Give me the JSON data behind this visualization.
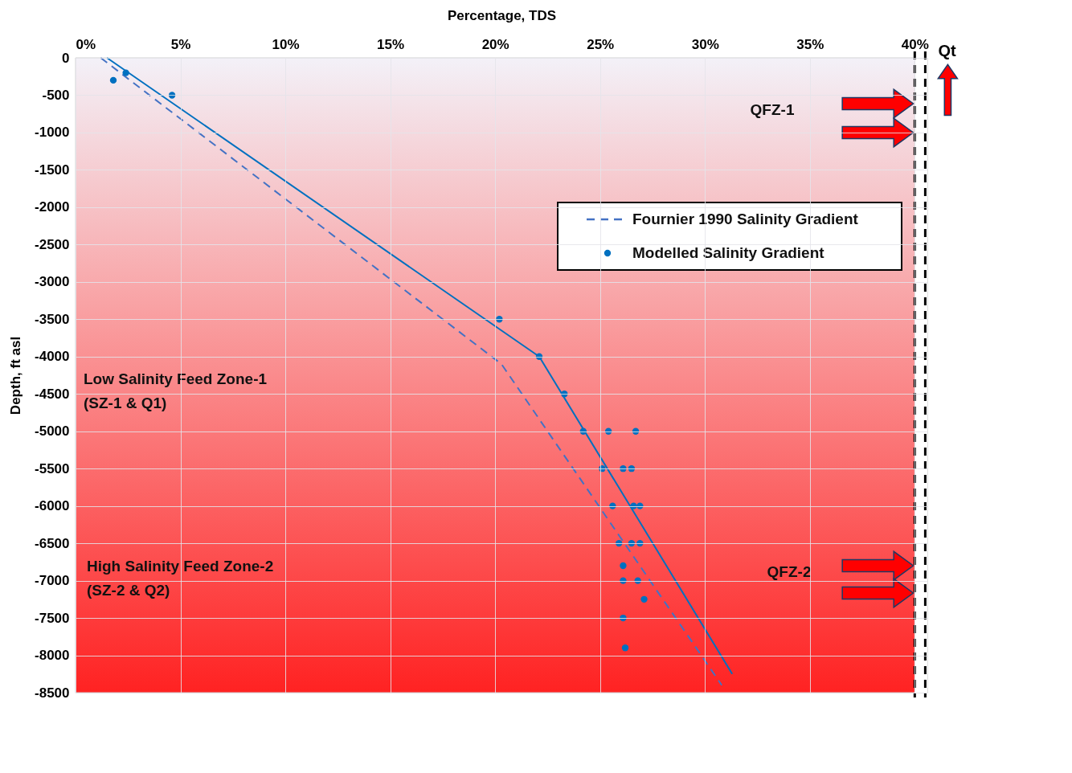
{
  "chart_data": {
    "type": "line",
    "xlabel": "Percentage, TDS",
    "ylabel": "Depth, ft asl",
    "xlim": [
      0,
      40.6
    ],
    "ylim": [
      -8500,
      0
    ],
    "xticks": [
      {
        "value": 0,
        "label": "0%"
      },
      {
        "value": 5,
        "label": "5%"
      },
      {
        "value": 10,
        "label": "10%"
      },
      {
        "value": 15,
        "label": "15%"
      },
      {
        "value": 20,
        "label": "20%"
      },
      {
        "value": 25,
        "label": "25%"
      },
      {
        "value": 30,
        "label": "30%"
      },
      {
        "value": 35,
        "label": "35%"
      },
      {
        "value": 40,
        "label": "40%"
      }
    ],
    "yticks": [
      0,
      -500,
      -1000,
      -1500,
      -2000,
      -2500,
      -3000,
      -3500,
      -4000,
      -4500,
      -5000,
      -5500,
      -6000,
      -6500,
      -7000,
      -7500,
      -8000,
      -8500
    ],
    "grid": true,
    "legend": "top right",
    "series": [
      {
        "line_style": "solid",
        "marker": "none",
        "color": "#0070c0",
        "x": [
          1.5,
          22.1,
          31.3
        ],
        "values": [
          0,
          -4000,
          -8250
        ]
      },
      {
        "name": "Fournier 1990 Salinity Gradient",
        "type": "line",
        "line_style": "dashed",
        "marker": "none",
        "color": "#4472c4",
        "x": [
          1.2,
          20.3,
          30.8
        ],
        "values": [
          0,
          -4100,
          -8400
        ]
      },
      {
        "name": "Modelled Salinity Gradient",
        "type": "scatter",
        "marker": "circle",
        "color": "#0070c0",
        "x": [
          1.8,
          2.4,
          4.6,
          20.2,
          22.1,
          23.3,
          24.2,
          25.4,
          26.7,
          25.1,
          26.1,
          26.5,
          25.6,
          26.6,
          26.9,
          25.9,
          26.5,
          26.9,
          26.1,
          26.1,
          26.8,
          27.1,
          26.1,
          26.2
        ],
        "values": [
          -300,
          -200,
          -500,
          -3500,
          -4000,
          -4500,
          -5000,
          -5000,
          -5000,
          -5500,
          -5500,
          -5500,
          -6000,
          -6000,
          -6000,
          -6500,
          -6500,
          -6500,
          -6800,
          -7000,
          -7000,
          -7250,
          -7500,
          -7900
        ]
      }
    ],
    "ref_lines": [
      {
        "axis": "x",
        "value": 40,
        "color": "#000000",
        "line_style": "dashed"
      },
      {
        "axis": "x",
        "value": 40.5,
        "label": "Qt",
        "color": "#000000",
        "line_style": "dashed"
      }
    ],
    "annotations": [
      "Low Salinity Feed Zone-1\n(SZ-1 & Q1)",
      "High Salinity Feed Zone-2\n(SZ-2 & Q2)",
      "QFZ-1",
      "QFZ-2"
    ]
  }
}
